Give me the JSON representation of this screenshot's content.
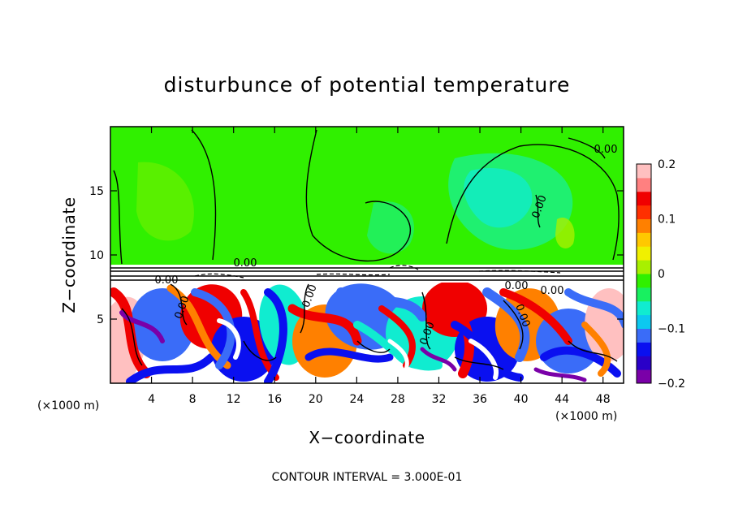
{
  "chart_data": {
    "type": "heatmap",
    "title": "disturbunce of potential temperature",
    "xlabel": "X−coordinate",
    "ylabel": "Z−coordinate",
    "x_unit": "(×1000 m)",
    "z_unit": "(×1000 m)",
    "xlim": [
      0,
      50
    ],
    "ylim": [
      0,
      20
    ],
    "x_ticks": [
      4,
      8,
      12,
      16,
      20,
      24,
      28,
      32,
      36,
      40,
      44,
      48
    ],
    "x_tick_labels": [
      "4",
      "8",
      "12",
      "16",
      "20",
      "24",
      "28",
      "32",
      "36",
      "40",
      "44",
      "48"
    ],
    "y_ticks": [
      5,
      10,
      15
    ],
    "y_tick_labels": [
      "5",
      "10",
      "15"
    ],
    "colorbar": {
      "min": -0.2,
      "max": 0.2,
      "ticks": [
        0.2,
        0.1,
        0,
        -0.1,
        -0.2
      ],
      "tick_labels": [
        "0.2",
        "0.1",
        "0",
        "−0.1",
        "−0.2"
      ],
      "colors": [
        "#7a00a8",
        "#2a00c8",
        "#0a10f0",
        "#3a6cf8",
        "#0cc8f0",
        "#10ecd0",
        "#18f060",
        "#30f000",
        "#a8f000",
        "#f0f000",
        "#ffc800",
        "#ff8000",
        "#ff3000",
        "#f00000",
        "#ff8080",
        "#ffc0c0"
      ]
    },
    "contour_labels": [
      "0.00",
      "0.00",
      "0.00",
      "0.00",
      "0.00",
      "0.00",
      "0.00",
      "0.00",
      "0.00",
      "0.00"
    ],
    "footer": "CONTOUR INTERVAL = 3.000E-01",
    "background_color": "#30f000",
    "colors": {
      "neutral": "#30f000",
      "light_neutral": "#a0f000",
      "warm": "#f00000",
      "warm_mid": "#ff8000",
      "warm_pale": "#ffc0c0",
      "cool": "#0a10f0",
      "cool_mid": "#3a6cf8",
      "cyan": "#10ecd0",
      "deep_cool": "#7a00a8",
      "white": "#ffffff"
    }
  }
}
